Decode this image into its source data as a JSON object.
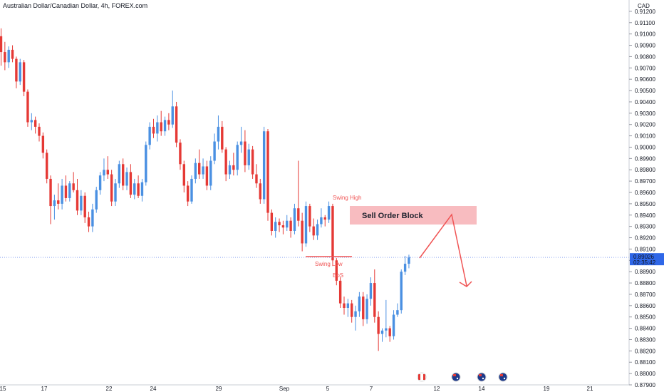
{
  "header": {
    "title": "Australian Dollar/Canadian Dollar, 4h, FOREX.com"
  },
  "colors": {
    "up": "#4a90e2",
    "down": "#e53935",
    "annotation": "#f05454",
    "zone": "#f8bcc0",
    "price_line": "#8fa8f0"
  },
  "chart_data": {
    "type": "candlestick",
    "currency_label": "CAD",
    "ylim": [
      0.879,
      0.913
    ],
    "y_ticks": [
      "0.91200",
      "0.91100",
      "0.91000",
      "0.90900",
      "0.90800",
      "0.90700",
      "0.90600",
      "0.90500",
      "0.90400",
      "0.90300",
      "0.90200",
      "0.90100",
      "0.90000",
      "0.89900",
      "0.89800",
      "0.89700",
      "0.89600",
      "0.89500",
      "0.89400",
      "0.89300",
      "0.89200",
      "0.89100",
      "0.89000",
      "0.88900",
      "0.88800",
      "0.88700",
      "0.88600",
      "0.88500",
      "0.88400",
      "0.88300",
      "0.88200",
      "0.88100",
      "0.88000",
      "0.87900"
    ],
    "x_ticks": [
      "15",
      "17",
      "22",
      "24",
      "29",
      "Sep",
      "5",
      "7",
      "12",
      "14",
      "19",
      "21"
    ],
    "last_price": "0.89026",
    "countdown": "02:35:42",
    "candles": [
      [
        0.9098,
        0.9105,
        0.9072,
        0.9084
      ],
      [
        0.9084,
        0.9093,
        0.9068,
        0.9075
      ],
      [
        0.9075,
        0.9089,
        0.907,
        0.9086
      ],
      [
        0.9086,
        0.909,
        0.9075,
        0.9078
      ],
      [
        0.9078,
        0.908,
        0.9052,
        0.9058
      ],
      [
        0.9058,
        0.9078,
        0.9055,
        0.9075
      ],
      [
        0.9075,
        0.9077,
        0.9045,
        0.9049
      ],
      [
        0.9049,
        0.9051,
        0.9018,
        0.9022
      ],
      [
        0.9022,
        0.903,
        0.9015,
        0.9024
      ],
      [
        0.9024,
        0.9027,
        0.9012,
        0.9018
      ],
      [
        0.9018,
        0.9021,
        0.9005,
        0.901
      ],
      [
        0.901,
        0.9013,
        0.899,
        0.8995
      ],
      [
        0.8995,
        0.8998,
        0.8968,
        0.8972
      ],
      [
        0.8972,
        0.8975,
        0.8932,
        0.8948
      ],
      [
        0.8948,
        0.8958,
        0.8936,
        0.8953
      ],
      [
        0.8953,
        0.8968,
        0.8945,
        0.895
      ],
      [
        0.895,
        0.8972,
        0.8945,
        0.8966
      ],
      [
        0.8966,
        0.8975,
        0.8952,
        0.8955
      ],
      [
        0.8955,
        0.897,
        0.8952,
        0.8968
      ],
      [
        0.8968,
        0.8978,
        0.896,
        0.8962
      ],
      [
        0.8962,
        0.8972,
        0.894,
        0.8944
      ],
      [
        0.8944,
        0.8962,
        0.894,
        0.8957
      ],
      [
        0.8957,
        0.896,
        0.8933,
        0.8938
      ],
      [
        0.8938,
        0.8943,
        0.8925,
        0.893
      ],
      [
        0.893,
        0.895,
        0.8925,
        0.8945
      ],
      [
        0.8945,
        0.8965,
        0.8942,
        0.8962
      ],
      [
        0.8962,
        0.8978,
        0.8958,
        0.8975
      ],
      [
        0.8975,
        0.899,
        0.897,
        0.898
      ],
      [
        0.898,
        0.8992,
        0.8972,
        0.8976
      ],
      [
        0.8976,
        0.898,
        0.8948,
        0.8952
      ],
      [
        0.8952,
        0.8972,
        0.8948,
        0.8968
      ],
      [
        0.8968,
        0.8988,
        0.8964,
        0.8985
      ],
      [
        0.8985,
        0.899,
        0.8962,
        0.8966
      ],
      [
        0.8966,
        0.8982,
        0.8962,
        0.8978
      ],
      [
        0.8978,
        0.8985,
        0.8955,
        0.8958
      ],
      [
        0.8958,
        0.8972,
        0.8954,
        0.8968
      ],
      [
        0.8968,
        0.8975,
        0.8955,
        0.8957
      ],
      [
        0.8957,
        0.8972,
        0.8952,
        0.8969
      ],
      [
        0.8969,
        0.9005,
        0.8966,
        0.9002
      ],
      [
        0.9002,
        0.9022,
        0.8998,
        0.9018
      ],
      [
        0.9018,
        0.9025,
        0.9008,
        0.9012
      ],
      [
        0.9012,
        0.9028,
        0.9005,
        0.9022
      ],
      [
        0.9022,
        0.9032,
        0.901,
        0.9014
      ],
      [
        0.9014,
        0.9027,
        0.901,
        0.9024
      ],
      [
        0.9024,
        0.903,
        0.9015,
        0.902
      ],
      [
        0.902,
        0.905,
        0.9017,
        0.9036
      ],
      [
        0.9036,
        0.904,
        0.9,
        0.9004
      ],
      [
        0.9004,
        0.9007,
        0.898,
        0.8985
      ],
      [
        0.8985,
        0.8988,
        0.896,
        0.8966
      ],
      [
        0.8966,
        0.897,
        0.8948,
        0.8952
      ],
      [
        0.8952,
        0.8975,
        0.895,
        0.8972
      ],
      [
        0.8972,
        0.899,
        0.8968,
        0.8986
      ],
      [
        0.8986,
        0.8998,
        0.8972,
        0.8976
      ],
      [
        0.8976,
        0.899,
        0.8972,
        0.8983
      ],
      [
        0.8983,
        0.8988,
        0.8962,
        0.8966
      ],
      [
        0.8966,
        0.8992,
        0.8962,
        0.8988
      ],
      [
        0.8988,
        0.9012,
        0.8985,
        0.9005
      ],
      [
        0.9005,
        0.9028,
        0.8998,
        0.9018
      ],
      [
        0.9018,
        0.9023,
        0.8995,
        0.8998
      ],
      [
        0.8998,
        0.9,
        0.897,
        0.8976
      ],
      [
        0.8976,
        0.8988,
        0.8972,
        0.8984
      ],
      [
        0.8984,
        0.8995,
        0.8975,
        0.898
      ],
      [
        0.898,
        0.9005,
        0.8975,
        0.9002
      ],
      [
        0.9002,
        0.9018,
        0.8995,
        0.9005
      ],
      [
        0.9005,
        0.9015,
        0.8978,
        0.8984
      ],
      [
        0.8984,
        0.9003,
        0.898,
        0.8998
      ],
      [
        0.8998,
        0.9001,
        0.8972,
        0.8976
      ],
      [
        0.8976,
        0.8985,
        0.8964,
        0.8968
      ],
      [
        0.8968,
        0.8972,
        0.895,
        0.8954
      ],
      [
        0.8954,
        0.9018,
        0.895,
        0.9014
      ],
      [
        0.9014,
        0.9016,
        0.8935,
        0.8942
      ],
      [
        0.8942,
        0.8945,
        0.8922,
        0.8926
      ],
      [
        0.8926,
        0.8938,
        0.892,
        0.8934
      ],
      [
        0.8934,
        0.8937,
        0.8925,
        0.8931
      ],
      [
        0.8931,
        0.8935,
        0.8923,
        0.8929
      ],
      [
        0.8929,
        0.894,
        0.8926,
        0.8935
      ],
      [
        0.8935,
        0.8938,
        0.892,
        0.8926
      ],
      [
        0.8926,
        0.895,
        0.8923,
        0.8946
      ],
      [
        0.8946,
        0.8988,
        0.893,
        0.8935
      ],
      [
        0.8935,
        0.8942,
        0.8908,
        0.8915
      ],
      [
        0.8915,
        0.8952,
        0.8912,
        0.8948
      ],
      [
        0.8948,
        0.895,
        0.8925,
        0.893
      ],
      [
        0.893,
        0.8937,
        0.8918,
        0.8922
      ],
      [
        0.8922,
        0.8936,
        0.8918,
        0.8932
      ],
      [
        0.8932,
        0.8946,
        0.8929,
        0.8938
      ],
      [
        0.8938,
        0.894,
        0.893,
        0.8936
      ],
      [
        0.8936,
        0.8952,
        0.8933,
        0.8948
      ],
      [
        0.8948,
        0.895,
        0.8895,
        0.89
      ],
      [
        0.89,
        0.8902,
        0.8878,
        0.8882
      ],
      [
        0.8882,
        0.8885,
        0.8858,
        0.8862
      ],
      [
        0.8862,
        0.8868,
        0.8852,
        0.8858
      ],
      [
        0.8858,
        0.8866,
        0.885,
        0.8862
      ],
      [
        0.8862,
        0.8865,
        0.8845,
        0.885
      ],
      [
        0.885,
        0.886,
        0.8838,
        0.8855
      ],
      [
        0.8855,
        0.8872,
        0.885,
        0.8868
      ],
      [
        0.8868,
        0.8872,
        0.8842,
        0.8848
      ],
      [
        0.8848,
        0.887,
        0.8844,
        0.8866
      ],
      [
        0.8866,
        0.8885,
        0.886,
        0.888
      ],
      [
        0.888,
        0.8892,
        0.8845,
        0.885
      ],
      [
        0.885,
        0.8855,
        0.882,
        0.8835
      ],
      [
        0.8835,
        0.884,
        0.8828,
        0.8838
      ],
      [
        0.8838,
        0.8865,
        0.8832,
        0.884
      ],
      [
        0.884,
        0.8842,
        0.8828,
        0.8833
      ],
      [
        0.8833,
        0.8856,
        0.883,
        0.8852
      ],
      [
        0.8852,
        0.8862,
        0.885,
        0.8856
      ],
      [
        0.8856,
        0.8892,
        0.8853,
        0.889
      ],
      [
        0.889,
        0.8904,
        0.8887,
        0.8897
      ],
      [
        0.8897,
        0.8905,
        0.8893,
        0.8903
      ]
    ]
  },
  "annotations": {
    "swing_high": "Swing High",
    "swing_low": "Swing Low",
    "bos": "BoS",
    "order_block": "Sell Order Block"
  }
}
